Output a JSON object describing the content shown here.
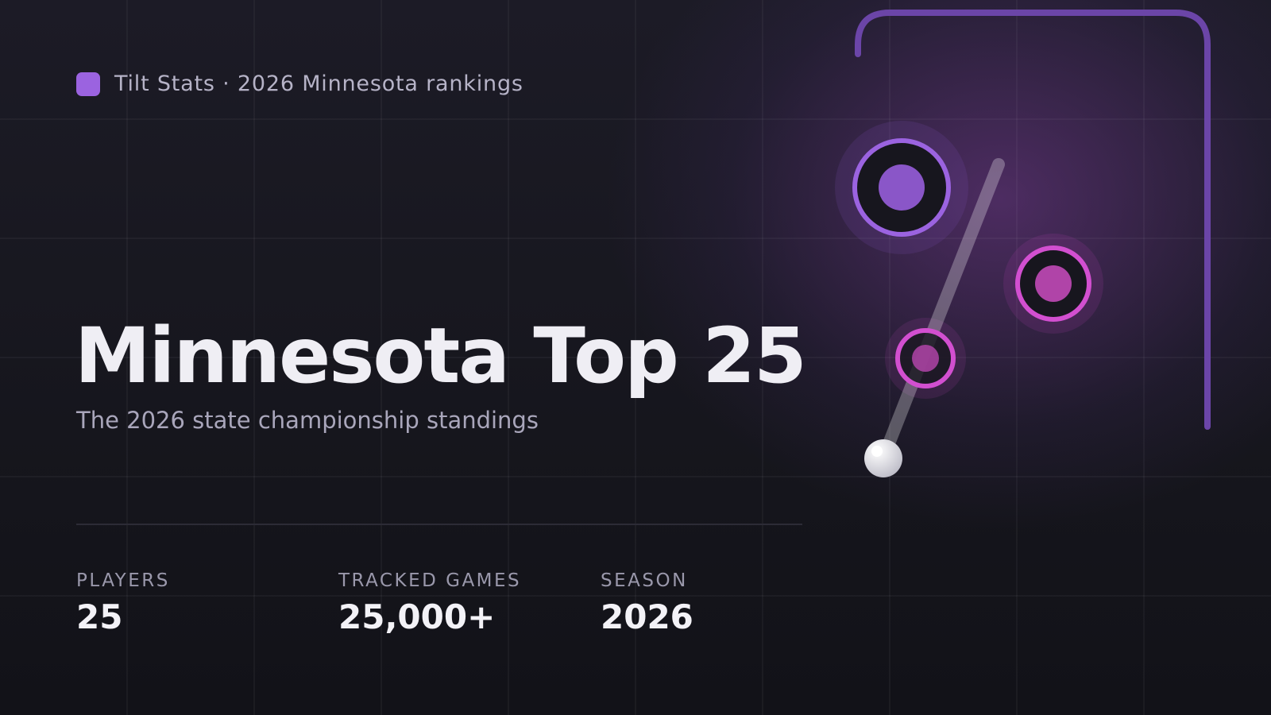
{
  "brand": "Tilt Stats · 2026 Minnesota rankings",
  "title": "Minnesota Top 25",
  "subtitle": "The 2026 state championship standings",
  "stats": [
    {
      "label": "PLAYERS",
      "value": "25"
    },
    {
      "label": "TRACKED GAMES",
      "value": "25,000+"
    },
    {
      "label": "SEASON",
      "value": "2026"
    }
  ]
}
